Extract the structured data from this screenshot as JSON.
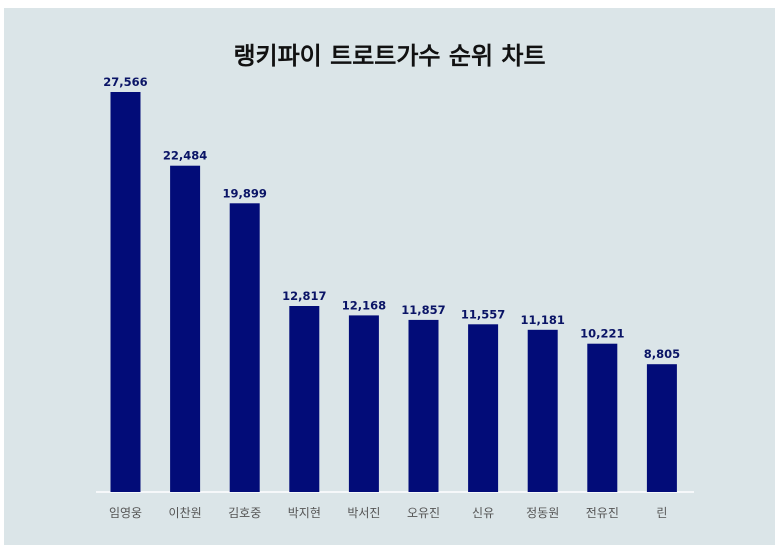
{
  "chart_data": {
    "type": "bar",
    "title": "랭키파이 트로트가수 순위 차트",
    "categories": [
      "임영웅",
      "이찬원",
      "김호중",
      "박지현",
      "박서진",
      "오유진",
      "신유",
      "정동원",
      "전유진",
      "린"
    ],
    "values": [
      27566,
      22484,
      19899,
      12817,
      12168,
      11857,
      11557,
      11181,
      10221,
      8805
    ],
    "value_labels": [
      "27,566",
      "22,484",
      "19,899",
      "12,817",
      "12,168",
      "11,857",
      "11,557",
      "11,181",
      "10,221",
      "8,805"
    ],
    "xlabel": "",
    "ylabel": "",
    "ylim": [
      0,
      27566
    ],
    "grid": false,
    "bar_color": "#020c78",
    "background_color": "#dbe5e8"
  }
}
